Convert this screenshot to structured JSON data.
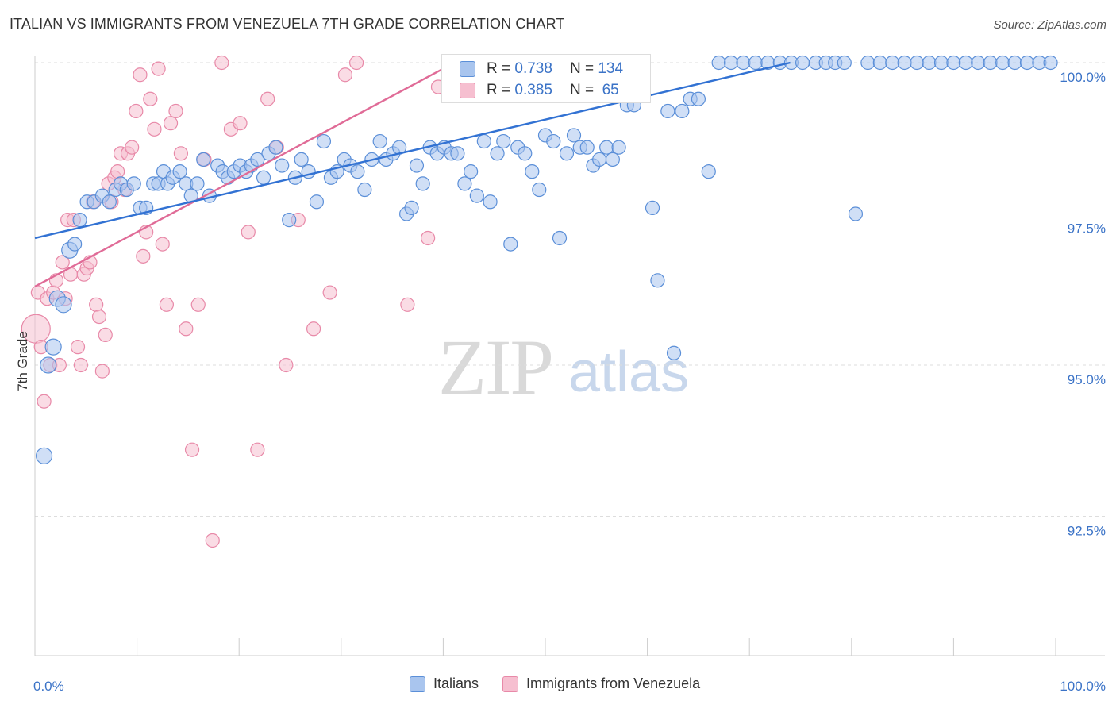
{
  "header": {
    "title": "ITALIAN VS IMMIGRANTS FROM VENEZUELA 7TH GRADE CORRELATION CHART",
    "source": "Source: ZipAtlas.com"
  },
  "watermark": {
    "zip": "ZIP",
    "atlas": "atlas"
  },
  "stats": {
    "italians": {
      "r_label": "R =",
      "r": "0.738",
      "n_label": "N =",
      "n": "134"
    },
    "venezuela": {
      "r_label": "R =",
      "r": "0.385",
      "n_label": "N =",
      "n": "65"
    }
  },
  "legend": {
    "italians": "Italians",
    "venezuela": "Immigrants from Venezuela"
  },
  "colors": {
    "blue_fill": "#a9c5ee",
    "blue_stroke": "#5b8fd8",
    "blue_line": "#3272d3",
    "pink_fill": "#f6bfd0",
    "pink_stroke": "#e889a8",
    "pink_line": "#e06b97",
    "tick_text": "#3b73c7",
    "grid": "#dddddd"
  },
  "chart_data": {
    "type": "scatter",
    "title": "ITALIAN VS IMMIGRANTS FROM VENEZUELA 7TH GRADE CORRELATION CHART",
    "xlabel": "",
    "ylabel": "7th Grade",
    "xlim": [
      0,
      100
    ],
    "ylim": [
      90.0,
      100.2
    ],
    "x_ticks": [
      "0.0%",
      "100.0%"
    ],
    "y_ticks": [
      {
        "value": 100.0,
        "label": "100.0%"
      },
      {
        "value": 97.5,
        "label": "97.5%"
      },
      {
        "value": 95.0,
        "label": "95.0%"
      },
      {
        "value": 92.5,
        "label": "92.5%"
      }
    ],
    "grid": true,
    "legend_position": "bottom-center",
    "series": [
      {
        "name": "Italians",
        "r": 0.738,
        "n": 134,
        "trend": [
          [
            0,
            97.1
          ],
          [
            74,
            100.0
          ]
        ],
        "points": [
          [
            0.9,
            93.5
          ],
          [
            1.3,
            95.0
          ],
          [
            1.8,
            95.3
          ],
          [
            2.2,
            96.1
          ],
          [
            2.8,
            96.0
          ],
          [
            3.4,
            96.9
          ],
          [
            3.9,
            97.0
          ],
          [
            4.4,
            97.4
          ],
          [
            5.1,
            97.7
          ],
          [
            5.8,
            97.7
          ],
          [
            6.6,
            97.8
          ],
          [
            7.3,
            97.7
          ],
          [
            7.9,
            97.9
          ],
          [
            8.4,
            98.0
          ],
          [
            9.0,
            97.9
          ],
          [
            9.7,
            98.0
          ],
          [
            10.3,
            97.6
          ],
          [
            10.9,
            97.6
          ],
          [
            11.6,
            98.0
          ],
          [
            12.1,
            98.0
          ],
          [
            12.6,
            98.2
          ],
          [
            13.0,
            98.0
          ],
          [
            13.5,
            98.1
          ],
          [
            14.2,
            98.2
          ],
          [
            14.8,
            98.0
          ],
          [
            15.3,
            97.8
          ],
          [
            15.9,
            98.0
          ],
          [
            16.5,
            98.4
          ],
          [
            17.1,
            97.8
          ],
          [
            17.9,
            98.3
          ],
          [
            18.4,
            98.2
          ],
          [
            18.9,
            98.1
          ],
          [
            19.5,
            98.2
          ],
          [
            20.1,
            98.3
          ],
          [
            20.7,
            98.2
          ],
          [
            21.2,
            98.3
          ],
          [
            21.8,
            98.4
          ],
          [
            22.4,
            98.1
          ],
          [
            22.9,
            98.5
          ],
          [
            23.6,
            98.6
          ],
          [
            24.2,
            98.3
          ],
          [
            24.9,
            97.4
          ],
          [
            25.5,
            98.1
          ],
          [
            26.1,
            98.4
          ],
          [
            26.8,
            98.2
          ],
          [
            27.6,
            97.7
          ],
          [
            28.3,
            98.7
          ],
          [
            29.0,
            98.1
          ],
          [
            29.6,
            98.2
          ],
          [
            30.3,
            98.4
          ],
          [
            30.9,
            98.3
          ],
          [
            31.6,
            98.2
          ],
          [
            32.3,
            97.9
          ],
          [
            33.0,
            98.4
          ],
          [
            33.8,
            98.7
          ],
          [
            34.4,
            98.4
          ],
          [
            35.1,
            98.5
          ],
          [
            35.7,
            98.6
          ],
          [
            36.4,
            97.5
          ],
          [
            36.9,
            97.6
          ],
          [
            37.4,
            98.3
          ],
          [
            38.0,
            98.0
          ],
          [
            38.7,
            98.6
          ],
          [
            39.4,
            98.5
          ],
          [
            40.1,
            98.6
          ],
          [
            40.8,
            98.5
          ],
          [
            41.4,
            98.5
          ],
          [
            42.1,
            98.0
          ],
          [
            42.7,
            98.2
          ],
          [
            43.3,
            97.8
          ],
          [
            44.0,
            98.7
          ],
          [
            44.6,
            97.7
          ],
          [
            45.3,
            98.5
          ],
          [
            45.9,
            98.7
          ],
          [
            46.6,
            97.0
          ],
          [
            47.3,
            98.6
          ],
          [
            48.0,
            98.5
          ],
          [
            48.7,
            98.2
          ],
          [
            49.4,
            97.9
          ],
          [
            50.0,
            98.8
          ],
          [
            50.8,
            98.7
          ],
          [
            51.4,
            97.1
          ],
          [
            52.1,
            98.5
          ],
          [
            52.8,
            98.8
          ],
          [
            53.4,
            98.6
          ],
          [
            54.1,
            98.6
          ],
          [
            54.7,
            98.3
          ],
          [
            55.3,
            98.4
          ],
          [
            56.0,
            98.6
          ],
          [
            56.6,
            98.4
          ],
          [
            57.2,
            98.6
          ],
          [
            58.0,
            99.3
          ],
          [
            58.7,
            99.3
          ],
          [
            60.5,
            97.6
          ],
          [
            61.0,
            96.4
          ],
          [
            62.0,
            99.2
          ],
          [
            62.6,
            95.2
          ],
          [
            63.4,
            99.2
          ],
          [
            64.2,
            99.4
          ],
          [
            65.0,
            99.4
          ],
          [
            66.0,
            98.2
          ],
          [
            67.0,
            100.0
          ],
          [
            68.2,
            100.0
          ],
          [
            69.4,
            100.0
          ],
          [
            70.6,
            100.0
          ],
          [
            71.8,
            100.0
          ],
          [
            73.0,
            100.0
          ],
          [
            74.1,
            100.0
          ],
          [
            75.2,
            100.0
          ],
          [
            76.5,
            100.0
          ],
          [
            77.5,
            100.0
          ],
          [
            78.4,
            100.0
          ],
          [
            79.3,
            100.0
          ],
          [
            80.4,
            97.5
          ],
          [
            81.6,
            100.0
          ],
          [
            82.8,
            100.0
          ],
          [
            84.0,
            100.0
          ],
          [
            85.2,
            100.0
          ],
          [
            86.4,
            100.0
          ],
          [
            87.6,
            100.0
          ],
          [
            88.8,
            100.0
          ],
          [
            90.0,
            100.0
          ],
          [
            91.2,
            100.0
          ],
          [
            92.4,
            100.0
          ],
          [
            93.6,
            100.0
          ],
          [
            94.8,
            100.0
          ],
          [
            96.0,
            100.0
          ],
          [
            97.2,
            100.0
          ],
          [
            98.4,
            100.0
          ],
          [
            99.5,
            100.0
          ],
          [
            45.0,
            100.0
          ],
          [
            48.5,
            100.0
          ],
          [
            51.8,
            100.0
          ],
          [
            55.0,
            100.0
          ]
        ]
      },
      {
        "name": "Immigrants from Venezuela",
        "r": 0.385,
        "n": 65,
        "trend": [
          [
            0,
            96.3
          ],
          [
            40,
            99.9
          ]
        ],
        "points": [
          [
            0.1,
            95.6
          ],
          [
            0.3,
            96.2
          ],
          [
            0.6,
            95.3
          ],
          [
            0.9,
            94.4
          ],
          [
            1.2,
            96.1
          ],
          [
            1.5,
            95.0
          ],
          [
            1.8,
            96.2
          ],
          [
            2.1,
            96.4
          ],
          [
            2.4,
            95.0
          ],
          [
            2.7,
            96.7
          ],
          [
            3.0,
            96.1
          ],
          [
            3.2,
            97.4
          ],
          [
            3.5,
            96.5
          ],
          [
            3.8,
            97.4
          ],
          [
            4.2,
            95.3
          ],
          [
            4.5,
            95.0
          ],
          [
            4.8,
            96.5
          ],
          [
            5.1,
            96.6
          ],
          [
            5.4,
            96.7
          ],
          [
            5.7,
            97.7
          ],
          [
            6.0,
            96.0
          ],
          [
            6.3,
            95.8
          ],
          [
            6.6,
            94.9
          ],
          [
            6.9,
            95.5
          ],
          [
            7.2,
            98.0
          ],
          [
            7.5,
            97.7
          ],
          [
            7.8,
            98.1
          ],
          [
            8.1,
            98.2
          ],
          [
            8.4,
            98.5
          ],
          [
            8.8,
            97.9
          ],
          [
            9.1,
            98.5
          ],
          [
            9.5,
            98.6
          ],
          [
            9.9,
            99.2
          ],
          [
            10.3,
            99.8
          ],
          [
            10.6,
            96.8
          ],
          [
            10.9,
            97.2
          ],
          [
            11.3,
            99.4
          ],
          [
            11.7,
            98.9
          ],
          [
            12.1,
            99.9
          ],
          [
            12.5,
            97.0
          ],
          [
            12.9,
            96.0
          ],
          [
            13.3,
            99.0
          ],
          [
            13.8,
            99.2
          ],
          [
            14.3,
            98.5
          ],
          [
            14.8,
            95.6
          ],
          [
            15.4,
            93.6
          ],
          [
            16.0,
            96.0
          ],
          [
            16.6,
            98.4
          ],
          [
            17.4,
            92.1
          ],
          [
            18.3,
            100.0
          ],
          [
            19.2,
            98.9
          ],
          [
            20.1,
            99.0
          ],
          [
            20.9,
            97.2
          ],
          [
            21.8,
            93.6
          ],
          [
            22.8,
            99.4
          ],
          [
            23.7,
            98.6
          ],
          [
            24.6,
            95.0
          ],
          [
            25.8,
            97.4
          ],
          [
            27.3,
            95.6
          ],
          [
            28.9,
            96.2
          ],
          [
            30.4,
            99.8
          ],
          [
            31.5,
            100.0
          ],
          [
            36.5,
            96.0
          ],
          [
            38.5,
            97.1
          ],
          [
            39.5,
            99.6
          ]
        ]
      }
    ]
  }
}
